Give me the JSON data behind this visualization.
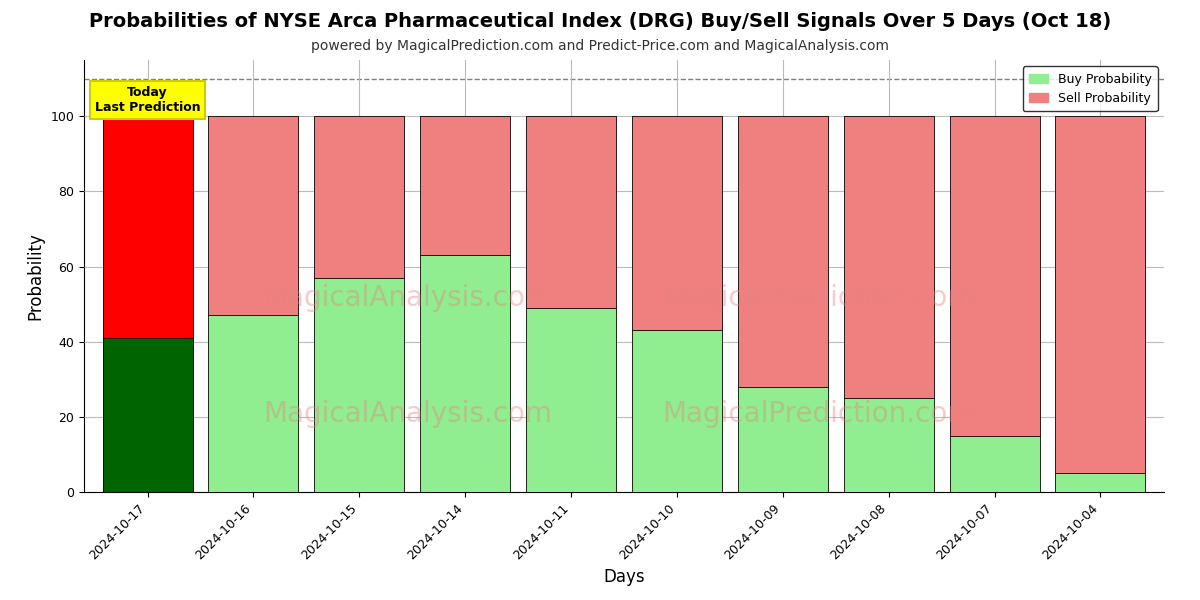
{
  "title": "Probabilities of NYSE Arca Pharmaceutical Index (DRG) Buy/Sell Signals Over 5 Days (Oct 18)",
  "subtitle": "powered by MagicalPrediction.com and Predict-Price.com and MagicalAnalysis.com",
  "xlabel": "Days",
  "ylabel": "Probability",
  "dates": [
    "2024-10-17",
    "2024-10-16",
    "2024-10-15",
    "2024-10-14",
    "2024-10-11",
    "2024-10-10",
    "2024-10-09",
    "2024-10-08",
    "2024-10-07",
    "2024-10-04"
  ],
  "buy_values": [
    41,
    47,
    57,
    63,
    49,
    43,
    28,
    25,
    15,
    5
  ],
  "sell_values": [
    59,
    53,
    43,
    37,
    51,
    57,
    72,
    75,
    85,
    95
  ],
  "buy_colors_main": [
    "#006400",
    "#90EE90",
    "#90EE90",
    "#90EE90",
    "#90EE90",
    "#90EE90",
    "#90EE90",
    "#90EE90",
    "#90EE90",
    "#90EE90"
  ],
  "sell_colors_main": [
    "#FF0000",
    "#F08080",
    "#F08080",
    "#F08080",
    "#F08080",
    "#F08080",
    "#F08080",
    "#F08080",
    "#F08080",
    "#F08080"
  ],
  "buy_color_legend": "#90EE90",
  "sell_color_legend": "#F08080",
  "ylim": [
    0,
    115
  ],
  "dashed_line_y": 110,
  "today_box_text": "Today\nLast Prediction",
  "today_box_color": "#FFFF00",
  "watermark_text1": "MagicalAnalysis.com",
  "watermark_text2": "MagicalPrediction.com",
  "background_color": "#FFFFFF",
  "grid_color": "#BBBBBB",
  "bar_edge_color": "#000000",
  "bar_width": 0.85,
  "title_fontsize": 14,
  "subtitle_fontsize": 10,
  "axis_label_fontsize": 12,
  "tick_fontsize": 9
}
